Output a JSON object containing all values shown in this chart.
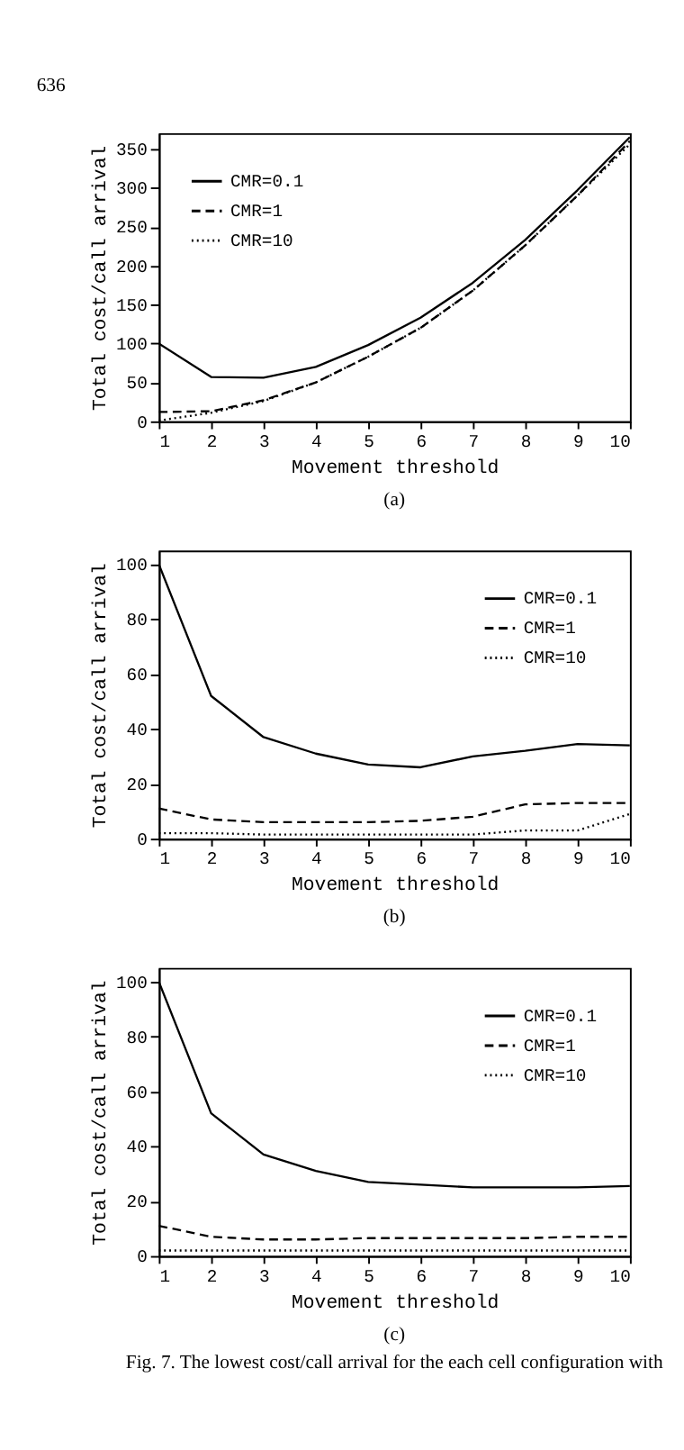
{
  "chart_data": [
    {
      "type": "line",
      "title": "636",
      "xlabel": "Movement threshold",
      "ylabel": "Total cost/call arrival",
      "annotations": [
        "(a)"
      ],
      "x": [
        1,
        2,
        3,
        4,
        5,
        6,
        7,
        8,
        9,
        10
      ],
      "xlim": [
        1,
        10
      ],
      "xticks": [
        1,
        2,
        3,
        4,
        5,
        6,
        7,
        8,
        9,
        10
      ],
      "ylim": [
        0,
        370
      ],
      "yticks": [
        0,
        50,
        100,
        150,
        200,
        250,
        300,
        350
      ],
      "grid": false,
      "legend": "top left",
      "marker": "none",
      "series": [
        {
          "name": "CMR=0.1",
          "color": "#000000",
          "line_style": "solid",
          "values": [
            100,
            57,
            56,
            70,
            98,
            133,
            178,
            233,
            297,
            365
          ]
        },
        {
          "name": "CMR=1",
          "color": "#000000",
          "line_style": "dashed",
          "values": [
            12,
            13,
            27,
            50,
            83,
            120,
            168,
            226,
            290,
            360
          ]
        },
        {
          "name": "CMR=10",
          "color": "#000000",
          "line_style": "dotted",
          "values": [
            1,
            11,
            26,
            50,
            83,
            120,
            168,
            226,
            290,
            356
          ]
        }
      ]
    },
    {
      "type": "line",
      "xlabel": "Movement threshold",
      "ylabel": "Total cost/call arrival",
      "annotations": [
        "(b)"
      ],
      "x": [
        1,
        2,
        3,
        4,
        5,
        6,
        7,
        8,
        9,
        10
      ],
      "xlim": [
        1,
        10
      ],
      "xticks": [
        1,
        2,
        3,
        4,
        5,
        6,
        7,
        8,
        9,
        10
      ],
      "ylim": [
        0,
        105
      ],
      "yticks": [
        0,
        20,
        40,
        60,
        80,
        100
      ],
      "grid": false,
      "legend": "top right",
      "marker": "none",
      "series": [
        {
          "name": "CMR=0.1",
          "color": "#000000",
          "line_style": "solid",
          "values": [
            100,
            52,
            37,
            31,
            27,
            26,
            30,
            32,
            34.5,
            34
          ]
        },
        {
          "name": "CMR=1",
          "color": "#000000",
          "line_style": "dashed",
          "values": [
            11,
            7,
            6,
            6,
            6,
            6.5,
            8,
            12.5,
            13,
            13
          ]
        },
        {
          "name": "CMR=10",
          "color": "#000000",
          "line_style": "dotted",
          "values": [
            2,
            2,
            1.5,
            1.5,
            1.5,
            1.5,
            1.5,
            3,
            3,
            9
          ]
        }
      ]
    },
    {
      "type": "line",
      "xlabel": "Movement threshold",
      "ylabel": "Total cost/call arrival",
      "annotations": [
        "(c)",
        "Fig. 7.  The lowest cost/call arrival for the each cell configuration with"
      ],
      "x": [
        1,
        2,
        3,
        4,
        5,
        6,
        7,
        8,
        9,
        10
      ],
      "xlim": [
        1,
        10
      ],
      "xticks": [
        1,
        2,
        3,
        4,
        5,
        6,
        7,
        8,
        9,
        10
      ],
      "ylim": [
        0,
        105
      ],
      "yticks": [
        0,
        20,
        40,
        60,
        80,
        100
      ],
      "grid": false,
      "legend": "top right",
      "marker": "none",
      "series": [
        {
          "name": "CMR=0.1",
          "color": "#000000",
          "line_style": "solid",
          "values": [
            100,
            52,
            37,
            31,
            27,
            26,
            25,
            25,
            25,
            25.5
          ]
        },
        {
          "name": "CMR=1",
          "color": "#000000",
          "line_style": "dashed",
          "values": [
            11,
            7,
            6,
            6,
            6.5,
            6.5,
            6.5,
            6.5,
            7,
            7
          ]
        },
        {
          "name": "CMR=10",
          "color": "#000000",
          "line_style": "dotted",
          "values": [
            2,
            2,
            2,
            2,
            2,
            2,
            2,
            2,
            2,
            2
          ]
        }
      ]
    }
  ]
}
